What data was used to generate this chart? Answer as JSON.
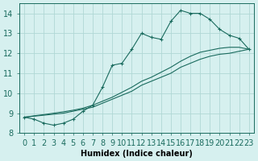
{
  "bg_color": "#d6f0ef",
  "grid_color": "#b0d8d5",
  "line_color": "#1a6b5e",
  "xlim": [
    -0.5,
    23.5
  ],
  "ylim": [
    8,
    14.5
  ],
  "xticks": [
    0,
    1,
    2,
    3,
    4,
    5,
    6,
    7,
    8,
    9,
    10,
    11,
    12,
    13,
    14,
    15,
    16,
    17,
    18,
    19,
    20,
    21,
    22,
    23
  ],
  "yticks": [
    8,
    9,
    10,
    11,
    12,
    13,
    14
  ],
  "xlabel": "Humidex (Indice chaleur)",
  "font_size": 7,
  "line1_x": [
    0,
    1,
    2,
    3,
    4,
    5,
    6,
    7,
    8,
    9,
    10,
    11,
    12,
    13,
    14,
    15,
    16,
    17,
    18,
    19,
    20,
    21,
    22,
    23
  ],
  "line1_y": [
    8.8,
    8.7,
    8.5,
    8.4,
    8.5,
    8.7,
    9.1,
    9.4,
    10.3,
    11.4,
    11.5,
    12.2,
    13.0,
    12.8,
    12.7,
    13.6,
    14.15,
    14.0,
    14.0,
    13.7,
    13.2,
    12.9,
    12.75,
    12.2
  ],
  "line2_x": [
    0,
    1,
    2,
    3,
    4,
    5,
    6,
    7,
    8,
    9,
    10,
    11,
    12,
    13,
    14,
    15,
    16,
    17,
    18,
    19,
    20,
    21,
    22,
    23
  ],
  "line2_y": [
    8.8,
    8.85,
    8.9,
    8.95,
    9.0,
    9.1,
    9.2,
    9.3,
    9.5,
    9.7,
    9.9,
    10.1,
    10.4,
    10.6,
    10.8,
    11.0,
    11.3,
    11.5,
    11.7,
    11.85,
    11.95,
    12.0,
    12.1,
    12.2
  ],
  "line3_x": [
    0,
    1,
    2,
    3,
    4,
    5,
    6,
    7,
    8,
    9,
    10,
    11,
    12,
    13,
    14,
    15,
    16,
    17,
    18,
    19,
    20,
    21,
    22,
    23
  ],
  "line3_y": [
    8.8,
    8.87,
    8.93,
    9.0,
    9.07,
    9.15,
    9.25,
    9.4,
    9.6,
    9.8,
    10.05,
    10.3,
    10.6,
    10.8,
    11.05,
    11.3,
    11.6,
    11.85,
    12.05,
    12.15,
    12.25,
    12.3,
    12.3,
    12.2
  ]
}
